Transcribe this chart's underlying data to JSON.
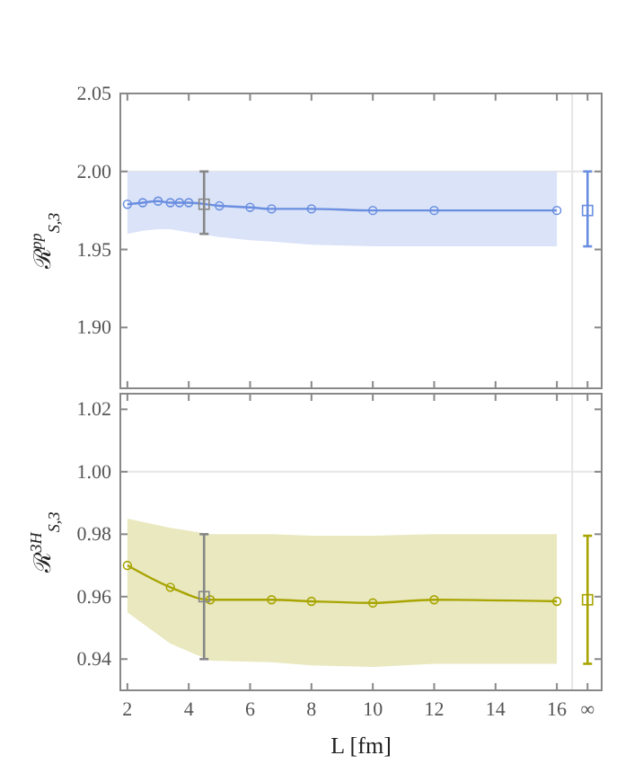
{
  "chart_data": [
    {
      "type": "line",
      "ylabel": "ℛ$^{pp}$$_{S,3}$",
      "xlim": [
        1.77,
        17.46
      ],
      "xticks": [
        2,
        4,
        6,
        8,
        10,
        12,
        14,
        16,
        {
          "value": 17,
          "label": null
        }
      ],
      "ylim": [
        1.861,
        2.05
      ],
      "yticks": [
        {
          "value": 1.9,
          "label": "1.90"
        },
        1.95,
        {
          "value": 2,
          "label": "2.00"
        },
        2.05
      ],
      "tick_labels": "y",
      "grid": false,
      "ref_lines": [
        {
          "axis": "y",
          "value": 2,
          "label": null,
          "color": "#e6e6e6"
        },
        {
          "axis": "x",
          "value": 16.5,
          "label": null,
          "color": "#e6e6e6"
        }
      ],
      "series": [
        {
          "marker": "circle",
          "line_style": "solid",
          "color": "#6a8ee0",
          "x": [
            2,
            2.5,
            3,
            3.4,
            3.7,
            4,
            5,
            6,
            6.7,
            8,
            10,
            12,
            16
          ],
          "values": [
            1.979,
            1.98,
            1.981,
            1.98,
            1.98,
            1.98,
            1.978,
            1.977,
            1.976,
            1.976,
            1.975,
            1.975,
            1.975
          ],
          "lower": [
            1.96,
            1.962,
            1.963,
            1.963,
            1.962,
            1.961,
            1.958,
            1.956,
            1.955,
            1.953,
            1.952,
            1.952,
            1.952
          ],
          "upper": [
            2.0,
            2.0,
            2.0,
            2.0,
            2.0,
            2.0,
            2.0,
            2.0,
            2.0,
            2.0,
            2.0,
            2.0,
            2.0
          ]
        },
        {
          "type": "scatter",
          "marker": "square",
          "color": "#888888",
          "x": [
            4.5
          ],
          "values": [
            1.979
          ],
          "errors": [
            [
              1.96,
              2.0
            ]
          ]
        },
        {
          "type": "scatter",
          "marker": "square",
          "color": "#6a8ee0",
          "x": [
            17
          ],
          "values": [
            1.975
          ],
          "errors": [
            [
              1.952,
              2.0
            ]
          ]
        }
      ]
    },
    {
      "type": "line",
      "ylabel": "ℛ$^{3H}$$_{S,3}$",
      "xlabel": "L [fm]",
      "xlim": [
        1.77,
        17.46
      ],
      "xticks": [
        2,
        4,
        6,
        8,
        10,
        12,
        14,
        16,
        {
          "value": 17,
          "label": "∞"
        }
      ],
      "ylim": [
        0.93,
        1.025
      ],
      "yticks": [
        0.94,
        0.96,
        0.98,
        {
          "value": 1,
          "label": "1.00"
        },
        1.02
      ],
      "grid": false,
      "ref_lines": [
        {
          "axis": "y",
          "value": 1,
          "label": null,
          "color": "#e6e6e6"
        },
        {
          "axis": "x",
          "value": 16.5,
          "label": null,
          "color": "#e6e6e6"
        }
      ],
      "series": [
        {
          "marker": "circle",
          "line_style": "solid",
          "color": "#a8a400",
          "x": [
            2,
            3.4,
            4.7,
            6.7,
            8,
            10,
            12,
            16
          ],
          "values": [
            0.97,
            0.963,
            0.959,
            0.959,
            0.9585,
            0.958,
            0.959,
            0.9585
          ],
          "lower": [
            0.955,
            0.945,
            0.9395,
            0.939,
            0.938,
            0.9375,
            0.9385,
            0.9385
          ],
          "upper": [
            0.985,
            0.982,
            0.98,
            0.98,
            0.9795,
            0.9795,
            0.98,
            0.98
          ]
        },
        {
          "type": "scatter",
          "marker": "square",
          "color": "#888888",
          "x": [
            4.5
          ],
          "values": [
            0.96
          ],
          "errors": [
            [
              0.94,
              0.98
            ]
          ]
        },
        {
          "type": "scatter",
          "marker": "square",
          "color": "#a8a400",
          "x": [
            17
          ],
          "values": [
            0.959
          ],
          "errors": [
            [
              0.9385,
              0.9795
            ]
          ]
        }
      ]
    }
  ]
}
